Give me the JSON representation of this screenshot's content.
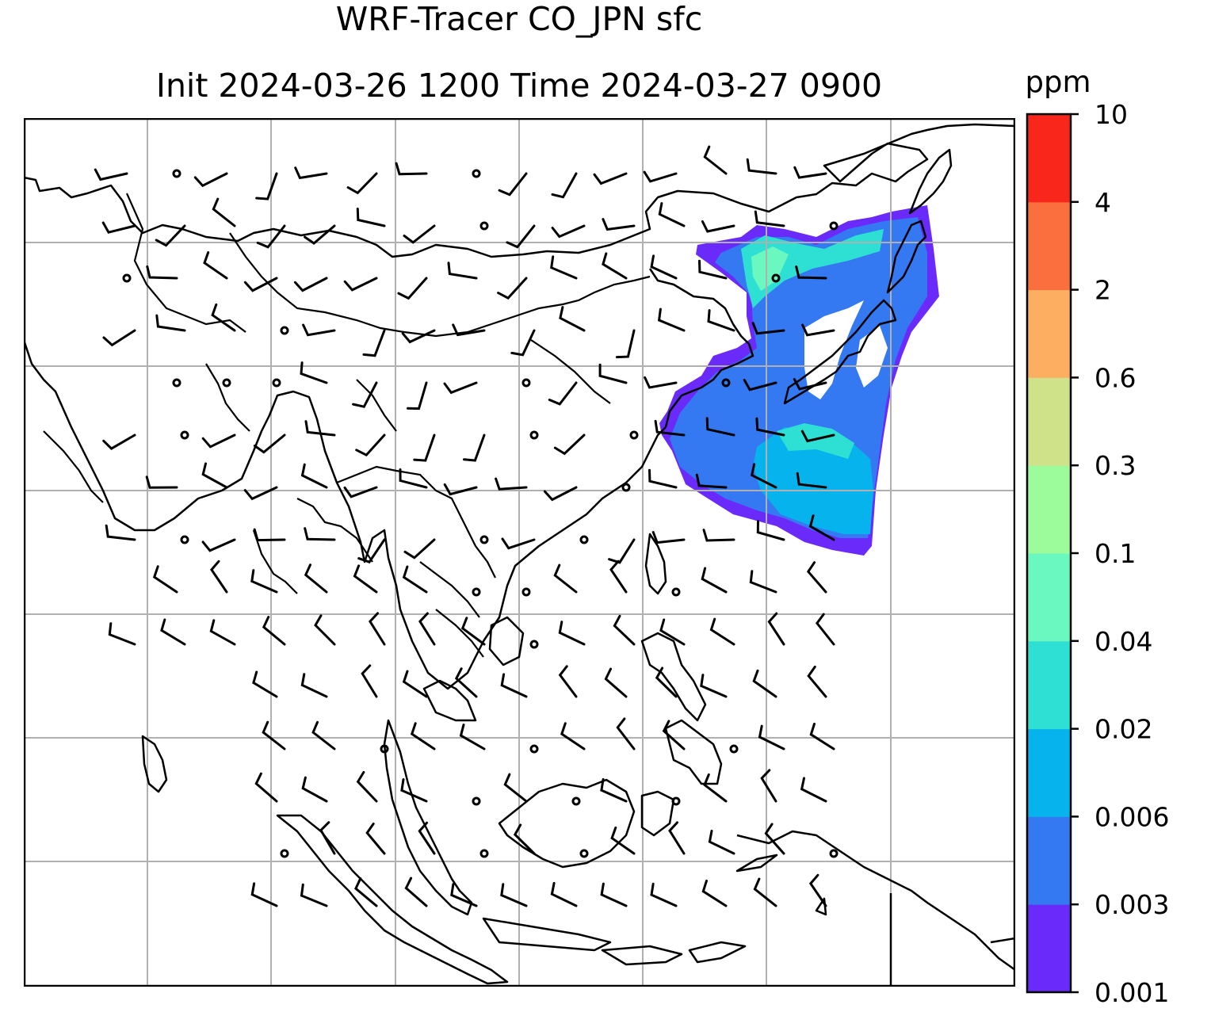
{
  "title": {
    "line1": "WRF-Tracer CO_JPN sfc",
    "line2": "Init 2024-03-26 1200 Time 2024-03-27 0900"
  },
  "colorbar": {
    "unit": "ppm",
    "ticks": [
      "0.001",
      "0.003",
      "0.006",
      "0.02",
      "0.04",
      "0.1",
      "0.3",
      "0.6",
      "2",
      "4",
      "10"
    ],
    "colors": [
      "#6a2bfa",
      "#3478f2",
      "#07b3ec",
      "#2ee0d4",
      "#6af7c0",
      "#9cfb9b",
      "#cfe189",
      "#fdae61",
      "#fb6e3d",
      "#f9261b"
    ]
  },
  "chart_data": {
    "type": "heatmap",
    "variable": "CO_JPN tracer at surface",
    "unit": "ppm",
    "levels": [
      0.001,
      0.003,
      0.006,
      0.02,
      0.04,
      0.1,
      0.3,
      0.6,
      2,
      4,
      10
    ],
    "init": "2024-03-26 1200",
    "valid": "2024-03-27 0900",
    "overlays": [
      "coastlines",
      "country borders",
      "lat-lon gridlines",
      "wind barbs"
    ]
  }
}
